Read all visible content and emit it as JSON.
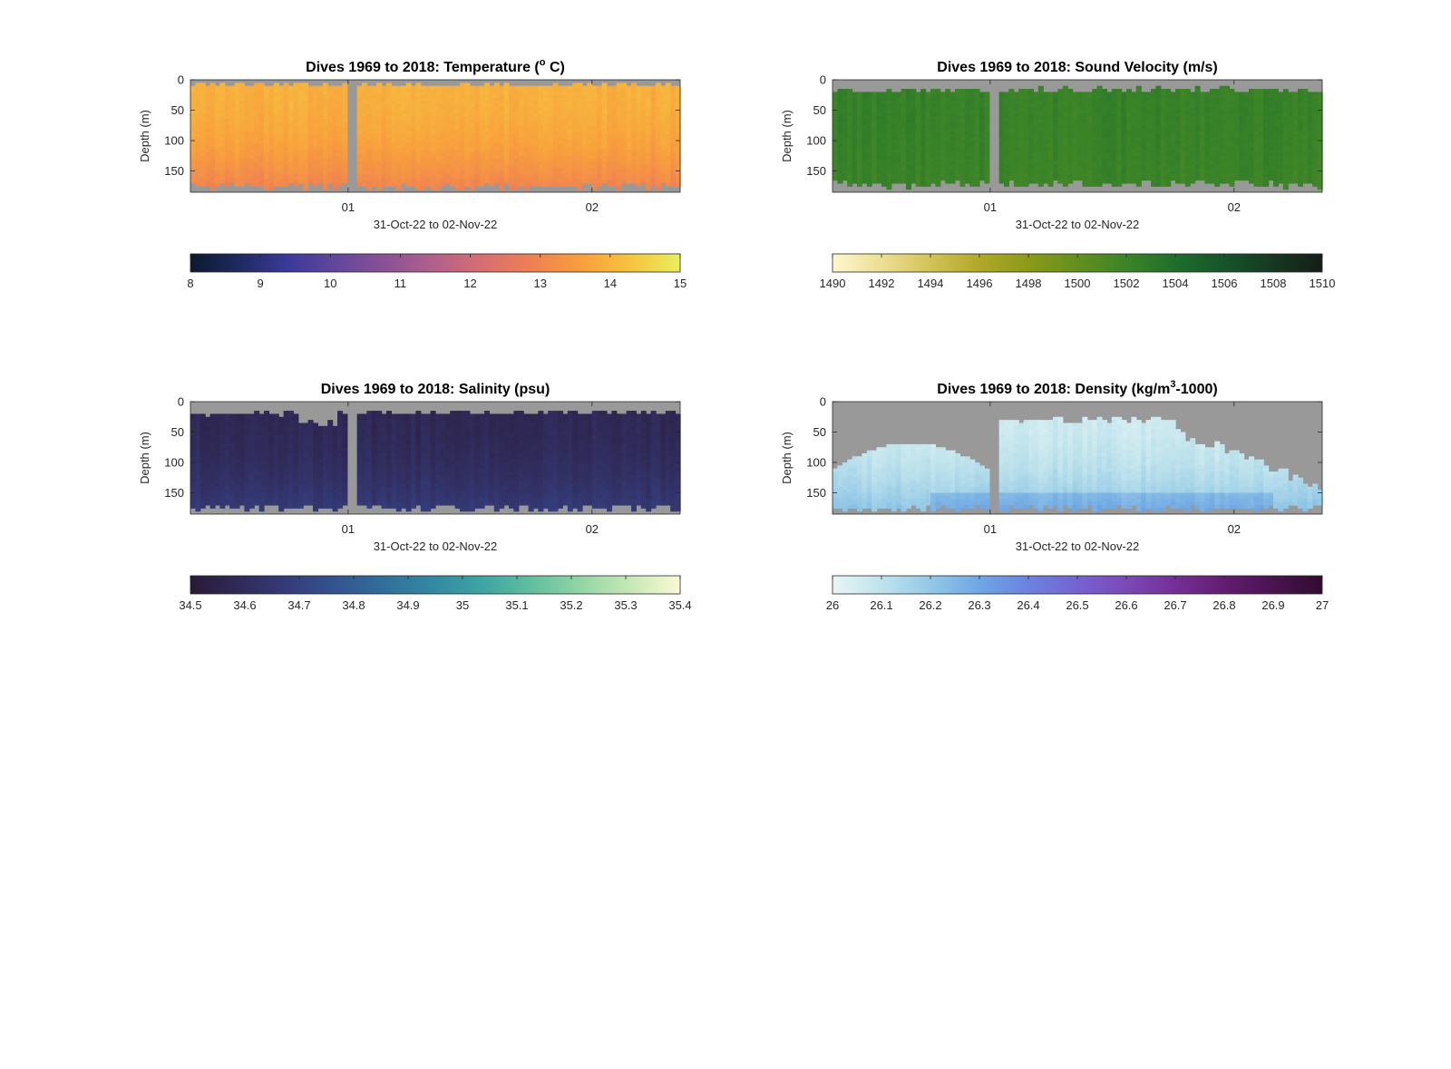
{
  "figure": {
    "background": "#ffffff",
    "missing_color": "#999999"
  },
  "chart_data": [
    {
      "type": "heatmap",
      "id": "temperature",
      "title": "Dives 1969 to 2018: Temperature (° C)",
      "title_main": "Dives 1969 to 2018: Temperature (",
      "title_sup": "o",
      "title_tail": " C)",
      "xlabel": "31-Oct-22 to 02-Nov-22",
      "ylabel": "Depth (m)",
      "x_tick_labels": [
        "01",
        "02"
      ],
      "y_tick_labels": [
        "0",
        "50",
        "100",
        "150"
      ],
      "y_ticks": [
        0,
        50,
        100,
        150
      ],
      "ylim": [
        0,
        185
      ],
      "x_reverse_axis": false,
      "depth_reversed": true,
      "colorbar": {
        "min": 8,
        "max": 15,
        "ticks": [
          8,
          9,
          10,
          11,
          12,
          13,
          14,
          15
        ],
        "tick_labels": [
          "8",
          "9",
          "10",
          "11",
          "12",
          "13",
          "14",
          "15"
        ],
        "colormap": [
          "#0b1a2e",
          "#1f2a60",
          "#3b3a9a",
          "#63479c",
          "#8a5295",
          "#b3618a",
          "#d86f71",
          "#ef8052",
          "#f8a03d",
          "#f6c43f",
          "#e7ef5e"
        ]
      },
      "field": {
        "base": 13.9,
        "surface_value": 13.9,
        "deep_value": 12.9,
        "gap_fraction": [
          0.32,
          0.345
        ],
        "top_depth_range": [
          5,
          12
        ],
        "bottom_depth_range": [
          170,
          180
        ]
      }
    },
    {
      "type": "heatmap",
      "id": "sound_velocity",
      "title": "Dives 1969 to 2018: Sound Velocity (m/s)",
      "xlabel": "31-Oct-22 to 02-Nov-22",
      "ylabel": "Depth (m)",
      "x_tick_labels": [
        "01",
        "02"
      ],
      "y_tick_labels": [
        "0",
        "50",
        "100",
        "150"
      ],
      "y_ticks": [
        0,
        50,
        100,
        150
      ],
      "ylim": [
        0,
        185
      ],
      "colorbar": {
        "min": 1490,
        "max": 1510,
        "ticks": [
          1490,
          1492,
          1494,
          1496,
          1498,
          1500,
          1502,
          1504,
          1506,
          1508,
          1510
        ],
        "tick_labels": [
          "1490",
          "1492",
          "1494",
          "1496",
          "1498",
          "1500",
          "1502",
          "1504",
          "1506",
          "1508",
          "1510"
        ],
        "colormap": [
          "#fdf7d0",
          "#ecdf94",
          "#d2c356",
          "#b0a82a",
          "#8c9a18",
          "#63901e",
          "#3b8428",
          "#1f6e2c",
          "#165429",
          "#163822",
          "#151e16"
        ]
      },
      "field": {
        "surface_value": 1502.3,
        "deep_value": 1502.0,
        "gap_fraction": [
          0.32,
          0.345
        ],
        "top_depth_range": [
          12,
          22
        ],
        "bottom_depth_range": [
          165,
          178
        ]
      }
    },
    {
      "type": "heatmap",
      "id": "salinity",
      "title": "Dives 1969 to 2018: Salinity (psu)",
      "xlabel": "31-Oct-22 to 02-Nov-22",
      "ylabel": "Depth (m)",
      "x_tick_labels": [
        "01",
        "02"
      ],
      "y_tick_labels": [
        "0",
        "50",
        "100",
        "150"
      ],
      "y_ticks": [
        0,
        50,
        100,
        150
      ],
      "ylim": [
        0,
        185
      ],
      "colorbar": {
        "min": 34.5,
        "max": 35.4,
        "ticks": [
          34.5,
          34.6,
          34.7,
          34.8,
          34.9,
          35.0,
          35.1,
          35.2,
          35.3,
          35.4
        ],
        "tick_labels": [
          "34.5",
          "34.6",
          "34.7",
          "34.8",
          "34.9",
          "35",
          "35.1",
          "35.2",
          "35.3",
          "35.4"
        ],
        "colormap": [
          "#271b36",
          "#302a58",
          "#353c7a",
          "#345591",
          "#31709b",
          "#338aa2",
          "#3ea6a3",
          "#61c09f",
          "#94d6a6",
          "#c8e8b6",
          "#fbf9d6"
        ]
      },
      "field": {
        "surface_value": 34.58,
        "deep_value": 34.68,
        "gap_fraction": [
          0.32,
          0.345
        ],
        "top_depth_range": [
          12,
          45
        ],
        "bottom_depth_range": [
          168,
          180
        ]
      }
    },
    {
      "type": "heatmap",
      "id": "density",
      "title": "Dives 1969 to 2018: Density (kg/m³-1000)",
      "title_main": "Dives 1969 to 2018: Density (kg/m",
      "title_sup": "3",
      "title_tail": "-1000)",
      "xlabel": "31-Oct-22 to 02-Nov-22",
      "ylabel": "Depth (m)",
      "x_tick_labels": [
        "01",
        "02"
      ],
      "y_tick_labels": [
        "0",
        "50",
        "100",
        "150"
      ],
      "y_ticks": [
        0,
        50,
        100,
        150
      ],
      "ylim": [
        0,
        185
      ],
      "colorbar": {
        "min": 26,
        "max": 27,
        "ticks": [
          26,
          26.1,
          26.2,
          26.3,
          26.4,
          26.5,
          26.6,
          26.7,
          26.8,
          26.9,
          27
        ],
        "tick_labels": [
          "26",
          "26.1",
          "26.2",
          "26.3",
          "26.4",
          "26.5",
          "26.6",
          "26.7",
          "26.8",
          "26.9",
          "27"
        ],
        "colormap": [
          "#e8f5f7",
          "#bfe3ec",
          "#94c8e6",
          "#6ea6e4",
          "#6b83df",
          "#7563d2",
          "#7b49b6",
          "#742f95",
          "#621d71",
          "#4a1350",
          "#300d2f"
        ]
      },
      "field": {
        "surface_value": 26.06,
        "deep_value": 26.22,
        "gap_fraction": [
          0.32,
          0.345
        ],
        "top_depth_range": [
          20,
          130
        ],
        "bottom_depth_range": [
          170,
          180
        ]
      }
    }
  ]
}
